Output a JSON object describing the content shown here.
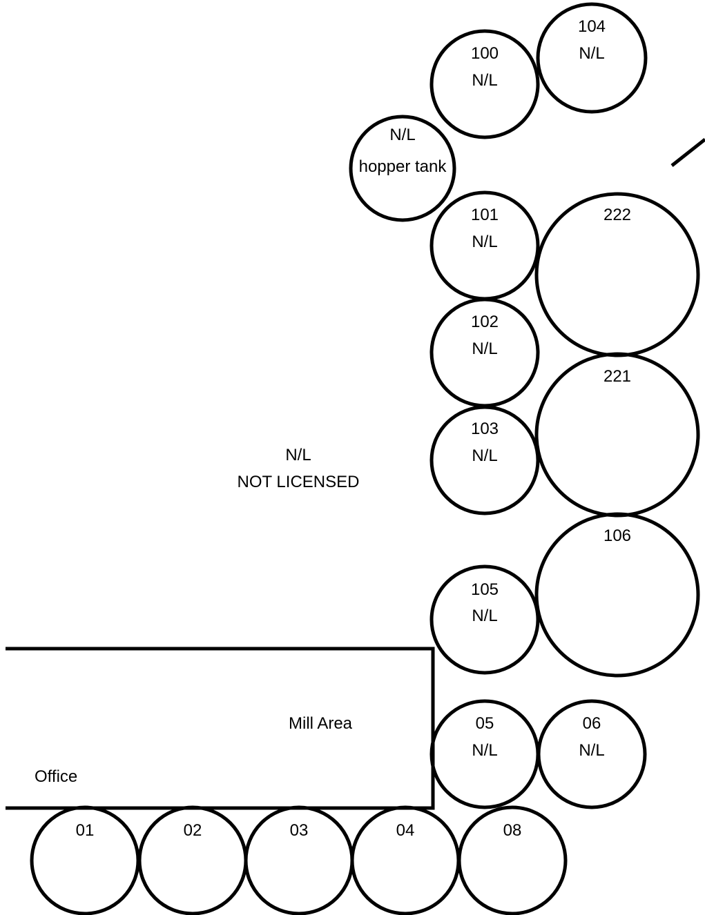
{
  "colors": {
    "stroke": "#000000",
    "background": "#ffffff"
  },
  "labels": {
    "not_licensed_code": "N/L",
    "not_licensed_text": "NOT LICENSED",
    "mill_area": "Mill Area",
    "office": "Office"
  },
  "tanks": [
    {
      "key": "104",
      "line1": "104",
      "line2": "N/L"
    },
    {
      "key": "100",
      "line1": "100",
      "line2": "N/L"
    },
    {
      "key": "hopper",
      "line1": "N/L",
      "line2": "hopper tank"
    },
    {
      "key": "101",
      "line1": "101",
      "line2": "N/L"
    },
    {
      "key": "222",
      "line1": "222",
      "line2": ""
    },
    {
      "key": "102",
      "line1": "102",
      "line2": "N/L"
    },
    {
      "key": "221",
      "line1": "221",
      "line2": ""
    },
    {
      "key": "103",
      "line1": "103",
      "line2": "N/L"
    },
    {
      "key": "106",
      "line1": "106",
      "line2": ""
    },
    {
      "key": "105",
      "line1": "105",
      "line2": "N/L"
    },
    {
      "key": "05",
      "line1": "05",
      "line2": "N/L"
    },
    {
      "key": "06",
      "line1": "06",
      "line2": "N/L"
    },
    {
      "key": "01",
      "line1": "01",
      "line2": ""
    },
    {
      "key": "02",
      "line1": "02",
      "line2": ""
    },
    {
      "key": "03",
      "line1": "03",
      "line2": ""
    },
    {
      "key": "04",
      "line1": "04",
      "line2": ""
    },
    {
      "key": "08",
      "line1": "08",
      "line2": ""
    }
  ]
}
